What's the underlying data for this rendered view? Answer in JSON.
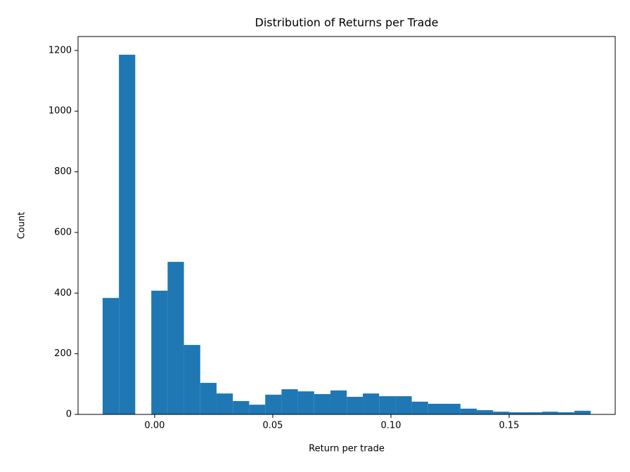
{
  "chart_data": {
    "type": "histogram",
    "title": "Distribution of Returns per Trade",
    "x_label": "Return per trade",
    "y_label": "Count",
    "bins": [
      -0.022,
      -0.0151,
      -0.0082,
      -0.0014,
      0.0055,
      0.0124,
      0.0193,
      0.0262,
      0.0331,
      0.04,
      0.0468,
      0.0537,
      0.0606,
      0.0675,
      0.0744,
      0.0813,
      0.0881,
      0.095,
      0.1019,
      0.1088,
      0.1157,
      0.1226,
      0.1294,
      0.1363,
      0.1432,
      0.1501,
      0.157,
      0.1639,
      0.1707,
      0.1776,
      0.1845
    ],
    "counts": [
      384,
      1186,
      0,
      408,
      503,
      229,
      104,
      69,
      44,
      32,
      65,
      83,
      76,
      67,
      79,
      58,
      69,
      60,
      60,
      42,
      35,
      35,
      19,
      14,
      9,
      7,
      7,
      9,
      7,
      12
    ],
    "color": "#1f77b4",
    "xlim": [
      -0.0324,
      0.1949
    ],
    "ylim": [
      0,
      1246
    ],
    "xticks": [
      {
        "value": 0,
        "label": "0.00"
      },
      {
        "value": 0.05,
        "label": "0.05"
      },
      {
        "value": 0.1,
        "label": "0.10"
      },
      {
        "value": 0.15,
        "label": "0.15"
      }
    ],
    "yticks": [
      0,
      200,
      400,
      600,
      800,
      1000,
      1200
    ],
    "grid": false
  }
}
